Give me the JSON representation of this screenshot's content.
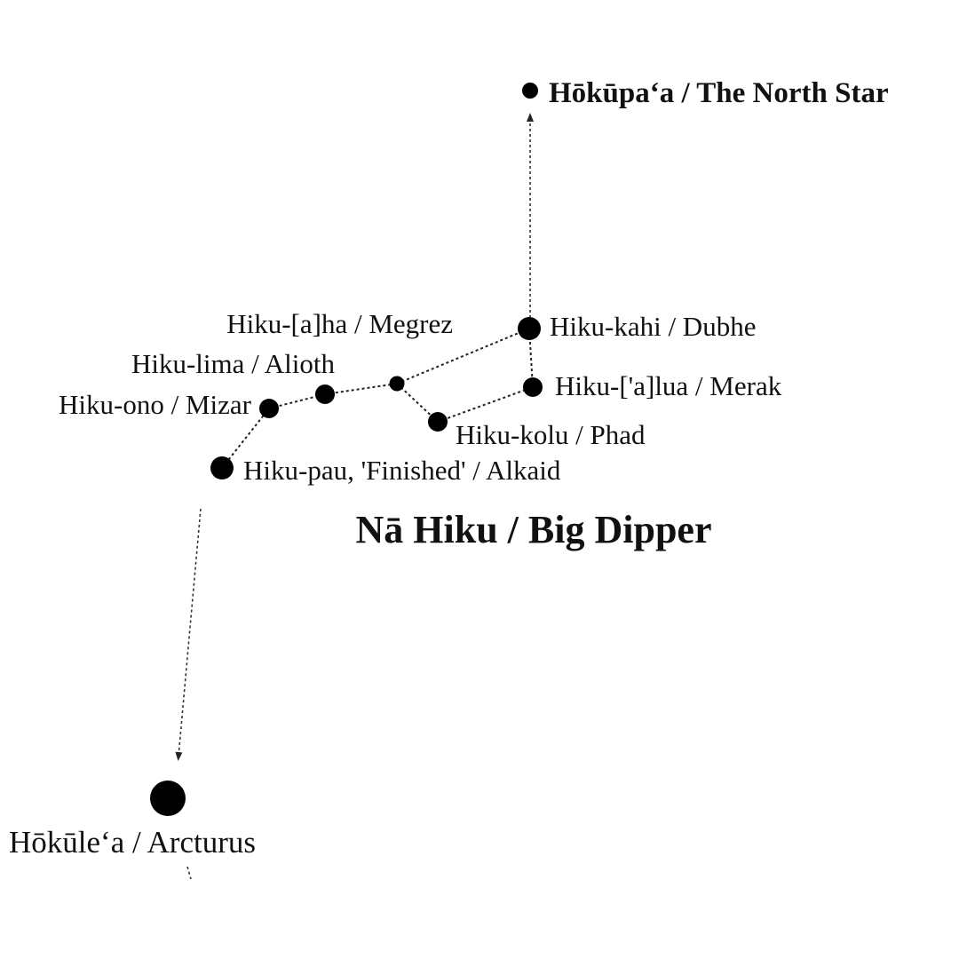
{
  "title": "Nā Hiku / Big Dipper",
  "stars": {
    "north_star": "Hōkūpaʻa / The North Star",
    "dubhe": "Hiku-kahi / Dubhe",
    "merak": "Hiku-['a]lua / Merak",
    "phad": "Hiku-kolu / Phad",
    "megrez": "Hiku-[a]ha / Megrez",
    "alioth": "Hiku-lima / Alioth",
    "mizar": "Hiku-ono / Mizar",
    "alkaid": "Hiku-pau, 'Finished' / Alkaid",
    "arcturus": "Hōkūleʻa / Arcturus"
  }
}
